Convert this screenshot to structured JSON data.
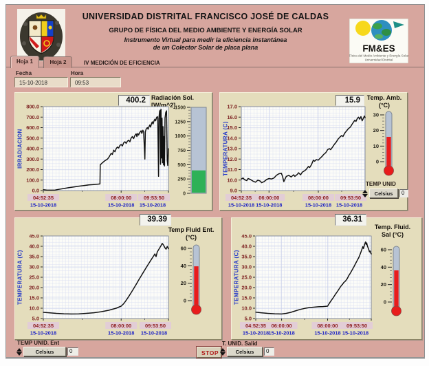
{
  "header": {
    "title": "UNIVERSIDAD DISTRITAL FRANCISCO JOSÉ DE CALDAS",
    "subtitle": "GRUPO DE FÍSICA DEL MEDIO AMBIENTE Y ENERGÍA SOLAR",
    "line1": "Instrumento Virtual para medir la eficiencia instantánea",
    "line2": "de un Colector Solar de placa plana",
    "logo_text": "FM&ES",
    "logo_sub1": "Física del Medio Ambiente y Energía Solar",
    "logo_sub2": "Universidad Distrital"
  },
  "tabs": [
    {
      "label": "Hoja 1",
      "active": true
    },
    {
      "label": "Hoja 2",
      "active": false
    }
  ],
  "tab_caption": "IV MEDICIÓN DE EFICIENCIA",
  "fields": {
    "fecha_label": "Fecha",
    "fecha": "15-10-2018",
    "hora_label": "Hora",
    "hora": "09:53"
  },
  "unit_controls": {
    "amb": {
      "label": "TEMP UNID",
      "value": "Celsius",
      "num": "0"
    },
    "ent": {
      "label": "TEMP UNID. Ent",
      "value": "Celsius",
      "num": "0"
    },
    "sal": {
      "label": "T. UNID. Salid",
      "value": "Celsius",
      "num": "0"
    }
  },
  "stop_label": "STOP",
  "colors": {
    "background": "#d7a69e",
    "panel": "#e4ddbc",
    "plot_bg": "#fcfcf8",
    "grid": "#dce1f2",
    "grid_major": "#c6cdea",
    "series": "#111111",
    "tick_text": "#7c2020",
    "chip_bg": "#e2cdd6",
    "date_text": "#2025c5",
    "axis_title": "#2438c8",
    "thermo_red": "#e81c1c",
    "tank_green": "#2eb157",
    "track": "#b7c3d4"
  },
  "chart_data": [
    {
      "type": "line",
      "name": "radiacion_solar",
      "readout": "400.2",
      "caption": [
        "Radiación Sol.",
        "[W/m^2]"
      ],
      "ylabel": "IRRADIACION",
      "ylim": [
        0,
        800
      ],
      "ystep": 100,
      "xlim_hours": [
        4.8764,
        9.8972
      ],
      "x_ticks": [
        {
          "time": "04:52:35",
          "date": "15-10-2018",
          "h": 4.8764
        },
        {
          "time": "08:00:00",
          "date": "15-10-2018",
          "h": 8.0
        },
        {
          "time": "09:53:50",
          "date": "15-10-2018",
          "h": 9.8972
        }
      ],
      "series": [
        [
          4.88,
          8
        ],
        [
          5.0,
          5
        ],
        [
          5.2,
          4
        ],
        [
          5.35,
          5
        ],
        [
          5.5,
          12
        ],
        [
          5.7,
          20
        ],
        [
          5.9,
          28
        ],
        [
          6.1,
          35
        ],
        [
          6.3,
          42
        ],
        [
          6.5,
          48
        ],
        [
          6.7,
          54
        ],
        [
          6.9,
          58
        ],
        [
          7.05,
          60
        ],
        [
          7.15,
          63
        ],
        [
          7.16,
          245
        ],
        [
          7.25,
          265
        ],
        [
          7.35,
          285
        ],
        [
          7.45,
          300
        ],
        [
          7.5,
          315
        ],
        [
          7.6,
          355
        ],
        [
          7.65,
          345
        ],
        [
          7.7,
          385
        ],
        [
          7.75,
          370
        ],
        [
          7.8,
          400
        ],
        [
          7.85,
          415
        ],
        [
          7.9,
          405
        ],
        [
          7.95,
          430
        ],
        [
          8.0,
          440
        ],
        [
          8.05,
          425
        ],
        [
          8.1,
          455
        ],
        [
          8.15,
          465
        ],
        [
          8.2,
          450
        ],
        [
          8.25,
          470
        ],
        [
          8.3,
          480
        ],
        [
          8.35,
          465
        ],
        [
          8.4,
          500
        ],
        [
          8.45,
          515
        ],
        [
          8.5,
          495
        ],
        [
          8.55,
          525
        ],
        [
          8.6,
          540
        ],
        [
          8.63,
          515
        ],
        [
          8.67,
          545
        ],
        [
          8.7,
          530
        ],
        [
          8.75,
          555
        ],
        [
          8.8,
          570
        ],
        [
          8.83,
          545
        ],
        [
          8.87,
          575
        ],
        [
          8.9,
          560
        ],
        [
          8.93,
          420
        ],
        [
          8.95,
          300
        ],
        [
          8.97,
          560
        ],
        [
          9.0,
          585
        ],
        [
          9.05,
          600
        ],
        [
          9.08,
          585
        ],
        [
          9.12,
          610
        ],
        [
          9.15,
          625
        ],
        [
          9.18,
          605
        ],
        [
          9.22,
          640
        ],
        [
          9.25,
          655
        ],
        [
          9.28,
          635
        ],
        [
          9.32,
          665
        ],
        [
          9.35,
          680
        ],
        [
          9.38,
          665
        ],
        [
          9.42,
          695
        ],
        [
          9.45,
          705
        ],
        [
          9.47,
          690
        ],
        [
          9.5,
          135
        ],
        [
          9.52,
          700
        ],
        [
          9.54,
          755
        ],
        [
          9.56,
          765
        ],
        [
          9.58,
          250
        ],
        [
          9.6,
          775
        ],
        [
          9.62,
          310
        ],
        [
          9.64,
          690
        ],
        [
          9.66,
          265
        ],
        [
          9.68,
          610
        ],
        [
          9.7,
          245
        ],
        [
          9.72,
          515
        ],
        [
          9.74,
          235
        ],
        [
          9.76,
          690
        ],
        [
          9.79,
          745
        ],
        [
          9.82,
          760
        ],
        [
          9.85,
          285
        ],
        [
          9.87,
          240
        ],
        [
          9.9,
          400
        ]
      ],
      "indicator": {
        "kind": "tank",
        "min": 0,
        "max": 1500,
        "step": 250,
        "value": 400.2
      }
    },
    {
      "type": "line",
      "name": "temp_ambiente",
      "readout": "15.9",
      "caption": [
        "Temp. Amb.",
        "(°C)"
      ],
      "ylabel": "TEMPERATURA (C)",
      "ylim": [
        9,
        17
      ],
      "ystep": 1,
      "xlim_hours": [
        4.8764,
        9.8972
      ],
      "x_ticks": [
        {
          "time": "04:52:35",
          "date": "15-10-2018",
          "h": 4.8764
        },
        {
          "time": "06:00:00",
          "date": "15-10-2018",
          "h": 6.0
        },
        {
          "time": "08:00:00",
          "date": "15-10-2018",
          "h": 8.0
        },
        {
          "time": "09:53:50",
          "date": "15-10-2018",
          "h": 9.8972
        }
      ],
      "series": [
        [
          4.88,
          10.1
        ],
        [
          4.95,
          10.2
        ],
        [
          5.0,
          10.05
        ],
        [
          5.1,
          9.95
        ],
        [
          5.15,
          10.15
        ],
        [
          5.25,
          10.05
        ],
        [
          5.35,
          9.9
        ],
        [
          5.45,
          9.8
        ],
        [
          5.55,
          10.0
        ],
        [
          5.65,
          9.9
        ],
        [
          5.7,
          9.75
        ],
        [
          5.8,
          9.85
        ],
        [
          5.9,
          10.05
        ],
        [
          6.0,
          10.15
        ],
        [
          6.1,
          10.1
        ],
        [
          6.2,
          10.2
        ],
        [
          6.3,
          10.45
        ],
        [
          6.4,
          10.6
        ],
        [
          6.5,
          10.65
        ],
        [
          6.55,
          10.35
        ],
        [
          6.6,
          9.85
        ],
        [
          6.65,
          10.1
        ],
        [
          6.7,
          10.35
        ],
        [
          6.8,
          10.45
        ],
        [
          6.9,
          10.3
        ],
        [
          7.0,
          10.5
        ],
        [
          7.05,
          10.35
        ],
        [
          7.15,
          10.55
        ],
        [
          7.2,
          10.7
        ],
        [
          7.28,
          10.5
        ],
        [
          7.35,
          10.75
        ],
        [
          7.45,
          10.9
        ],
        [
          7.5,
          11.0
        ],
        [
          7.55,
          11.15
        ],
        [
          7.6,
          11.3
        ],
        [
          7.65,
          11.2
        ],
        [
          7.72,
          11.45
        ],
        [
          7.8,
          11.9
        ],
        [
          7.85,
          11.8
        ],
        [
          7.92,
          11.95
        ],
        [
          8.0,
          11.9
        ],
        [
          8.08,
          12.1
        ],
        [
          8.15,
          12.25
        ],
        [
          8.22,
          12.45
        ],
        [
          8.3,
          12.6
        ],
        [
          8.38,
          12.9
        ],
        [
          8.45,
          13.0
        ],
        [
          8.5,
          12.9
        ],
        [
          8.58,
          13.15
        ],
        [
          8.65,
          13.4
        ],
        [
          8.72,
          13.6
        ],
        [
          8.8,
          13.9
        ],
        [
          8.88,
          14.1
        ],
        [
          8.95,
          14.25
        ],
        [
          9.0,
          14.15
        ],
        [
          9.08,
          14.5
        ],
        [
          9.15,
          14.7
        ],
        [
          9.22,
          14.9
        ],
        [
          9.3,
          15.05
        ],
        [
          9.35,
          15.25
        ],
        [
          9.42,
          15.5
        ],
        [
          9.48,
          15.7
        ],
        [
          9.53,
          15.6
        ],
        [
          9.58,
          15.85
        ],
        [
          9.63,
          16.0
        ],
        [
          9.68,
          15.8
        ],
        [
          9.73,
          16.05
        ],
        [
          9.78,
          15.65
        ],
        [
          9.83,
          15.9
        ],
        [
          9.87,
          16.1
        ],
        [
          9.9,
          15.95
        ]
      ],
      "indicator": {
        "kind": "thermo",
        "min": 0,
        "max": 30,
        "step": 10,
        "value": 15.9
      }
    },
    {
      "type": "line",
      "name": "temp_fluido_entrada",
      "readout": "39.39",
      "caption": [
        "Temp Fluid Ent.",
        "(°C)"
      ],
      "ylabel": "TEMPERATURA (C)",
      "ylim": [
        5,
        45
      ],
      "ystep": 5,
      "xlim_hours": [
        4.8764,
        9.8972
      ],
      "x_ticks": [
        {
          "time": "04:52:35",
          "date": "15-10-2018",
          "h": 4.8764
        },
        {
          "time": "08:00:00",
          "date": "15-10-2018",
          "h": 8.0
        },
        {
          "time": "09:53:50",
          "date": "15-10-2018",
          "h": 9.8972
        }
      ],
      "series": [
        [
          4.88,
          8.0
        ],
        [
          5.1,
          7.8
        ],
        [
          5.4,
          7.5
        ],
        [
          5.7,
          7.3
        ],
        [
          6.0,
          7.2
        ],
        [
          6.3,
          7.25
        ],
        [
          6.6,
          7.5
        ],
        [
          6.9,
          7.8
        ],
        [
          7.2,
          8.3
        ],
        [
          7.5,
          9.0
        ],
        [
          7.8,
          10.0
        ],
        [
          8.0,
          11.0
        ],
        [
          8.1,
          12.2
        ],
        [
          8.2,
          13.8
        ],
        [
          8.3,
          15.6
        ],
        [
          8.4,
          17.5
        ],
        [
          8.5,
          19.5
        ],
        [
          8.6,
          21.5
        ],
        [
          8.7,
          23.6
        ],
        [
          8.8,
          25.6
        ],
        [
          8.9,
          27.6
        ],
        [
          9.0,
          29.6
        ],
        [
          9.1,
          31.5
        ],
        [
          9.2,
          33.4
        ],
        [
          9.3,
          35.3
        ],
        [
          9.35,
          36.3
        ],
        [
          9.4,
          35.0
        ],
        [
          9.45,
          37.3
        ],
        [
          9.5,
          38.3
        ],
        [
          9.55,
          39.3
        ],
        [
          9.6,
          40.3
        ],
        [
          9.65,
          41.4
        ],
        [
          9.7,
          40.6
        ],
        [
          9.75,
          39.4
        ],
        [
          9.8,
          38.6
        ],
        [
          9.85,
          39.9
        ],
        [
          9.9,
          38.8
        ]
      ],
      "indicator": {
        "kind": "thermo",
        "min": 0,
        "max": 60,
        "step": 20,
        "value": 39.39
      }
    },
    {
      "type": "line",
      "name": "temp_fluido_salida",
      "readout": "36.31",
      "caption": [
        "Temp. Fluid.",
        "Sal (°C)"
      ],
      "ylabel": "TEMPERATURA (C)",
      "ylim": [
        5,
        45
      ],
      "ystep": 5,
      "xlim_hours": [
        4.8764,
        9.8972
      ],
      "x_ticks": [
        {
          "time": "04:52:35",
          "date": "15-10-2018",
          "h": 4.8764
        },
        {
          "time": "06:00:00",
          "date": "15-10-2018",
          "h": 6.0
        },
        {
          "time": "08:00:00",
          "date": "15-10-2018",
          "h": 8.0
        },
        {
          "time": "09:53:50",
          "date": "15-10-2018",
          "h": 9.8972
        }
      ],
      "series": [
        [
          4.88,
          8.1
        ],
        [
          5.1,
          7.8
        ],
        [
          5.4,
          7.5
        ],
        [
          5.7,
          7.3
        ],
        [
          6.0,
          7.2
        ],
        [
          6.2,
          7.5
        ],
        [
          6.4,
          8.0
        ],
        [
          6.6,
          8.7
        ],
        [
          6.8,
          9.4
        ],
        [
          7.0,
          9.9
        ],
        [
          7.2,
          10.3
        ],
        [
          7.4,
          10.5
        ],
        [
          7.6,
          10.7
        ],
        [
          7.8,
          10.8
        ],
        [
          8.0,
          11.0
        ],
        [
          8.07,
          12.3
        ],
        [
          8.15,
          13.6
        ],
        [
          8.25,
          15.2
        ],
        [
          8.35,
          16.9
        ],
        [
          8.45,
          18.5
        ],
        [
          8.55,
          20.2
        ],
        [
          8.6,
          21.0
        ],
        [
          8.65,
          21.6
        ],
        [
          8.7,
          22.4
        ],
        [
          8.78,
          23.2
        ],
        [
          8.85,
          24.3
        ],
        [
          8.92,
          25.8
        ],
        [
          9.0,
          27.2
        ],
        [
          9.07,
          28.6
        ],
        [
          9.15,
          30.2
        ],
        [
          9.22,
          31.7
        ],
        [
          9.3,
          33.4
        ],
        [
          9.35,
          34.4
        ],
        [
          9.4,
          35.8
        ],
        [
          9.45,
          37.2
        ],
        [
          9.5,
          38.8
        ],
        [
          9.53,
          39.8
        ],
        [
          9.56,
          38.9
        ],
        [
          9.6,
          40.6
        ],
        [
          9.63,
          41.6
        ],
        [
          9.65,
          42.1
        ],
        [
          9.68,
          40.9
        ],
        [
          9.7,
          41.6
        ],
        [
          9.73,
          40.1
        ],
        [
          9.76,
          39.3
        ],
        [
          9.79,
          38.4
        ],
        [
          9.82,
          37.3
        ],
        [
          9.85,
          37.7
        ],
        [
          9.88,
          36.6
        ],
        [
          9.9,
          36.3
        ]
      ],
      "indicator": {
        "kind": "thermo",
        "min": 0,
        "max": 60,
        "step": 20,
        "value": 36.31
      }
    }
  ]
}
